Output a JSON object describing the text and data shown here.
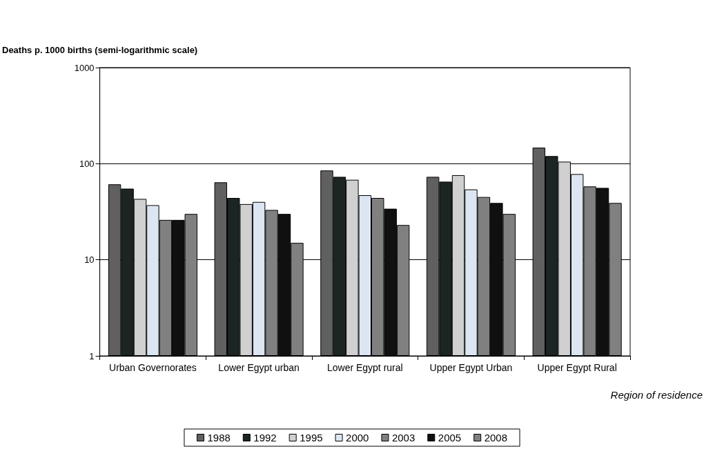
{
  "chart_data": {
    "type": "bar",
    "ylabel": "Deaths p. 1000 births (semi-logarithmic scale)",
    "xlabel": "Region of residence",
    "categories": [
      "Urban Governorates",
      "Lower Egypt urban",
      "Lower Egypt rural",
      "Upper Egypt Urban",
      "Upper Egypt Rural"
    ],
    "series": [
      {
        "name": "1988",
        "color": "#606060",
        "values": [
          61,
          64,
          85,
          73,
          147
        ]
      },
      {
        "name": "1992",
        "color": "#1c2424",
        "values": [
          55,
          44,
          73,
          65,
          120
        ]
      },
      {
        "name": "1995",
        "color": "#d0d0d0",
        "values": [
          43,
          38,
          68,
          76,
          105
        ]
      },
      {
        "name": "2000",
        "color": "#dce6f2",
        "values": [
          37,
          40,
          47,
          54,
          78
        ]
      },
      {
        "name": "2003",
        "color": "#808080",
        "values": [
          26,
          33,
          44,
          45,
          58
        ]
      },
      {
        "name": "2005",
        "color": "#101010",
        "values": [
          26,
          30,
          34,
          39,
          56
        ]
      },
      {
        "name": "2008",
        "color": "#808080",
        "values": [
          30,
          15,
          23,
          30,
          39
        ]
      }
    ],
    "log": "y",
    "ylim": [
      1,
      1000
    ],
    "yticks": [
      1,
      10,
      100,
      1000
    ],
    "grid": "y",
    "legend": "bottom"
  }
}
